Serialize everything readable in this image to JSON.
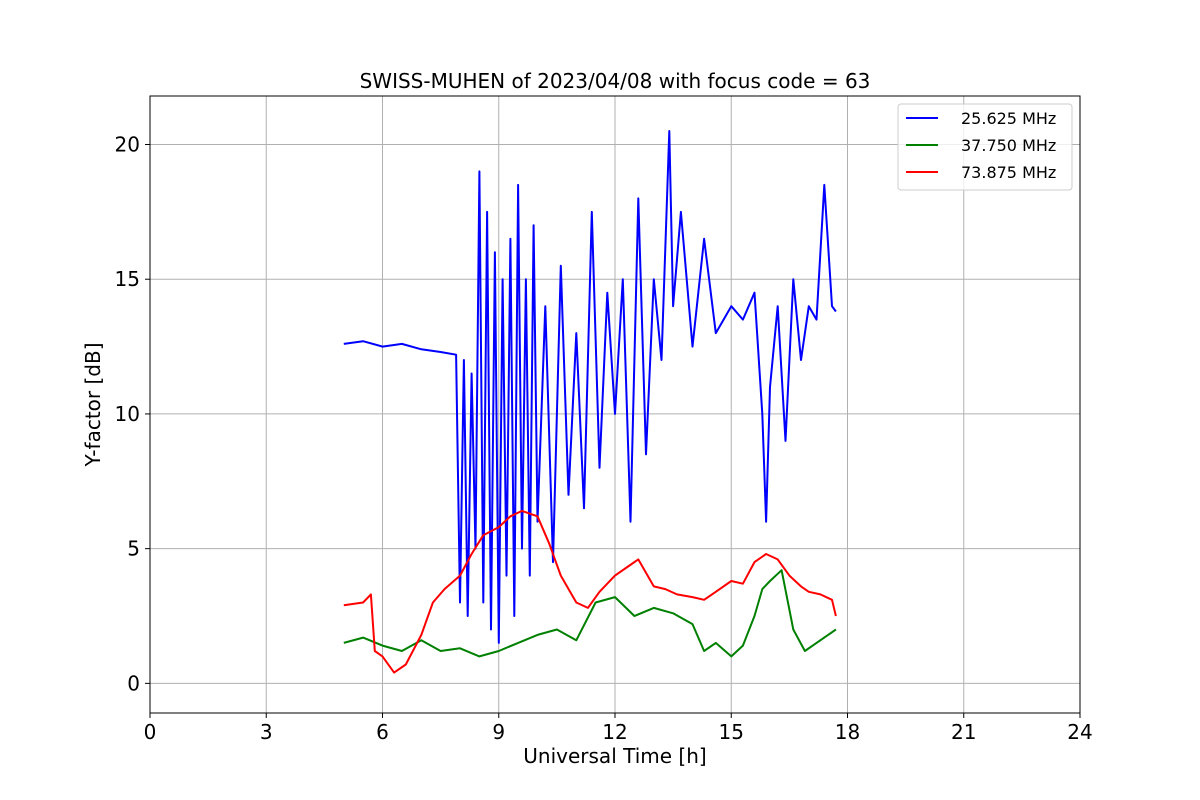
{
  "chart_data": {
    "type": "line",
    "title": "SWISS-MUHEN of 2023/04/08 with focus code = 63",
    "xlabel": "Universal Time [h]",
    "ylabel": "Y-factor [dB]",
    "xlim": [
      0,
      24
    ],
    "ylim": [
      -1.1,
      21.8
    ],
    "xticks": [
      0,
      3,
      6,
      9,
      12,
      15,
      18,
      21,
      24
    ],
    "xtick_labels": [
      "0",
      "3",
      "6",
      "9",
      "12",
      "15",
      "18",
      "21",
      "24"
    ],
    "yticks": [
      0,
      5,
      10,
      15,
      20
    ],
    "ytick_labels": [
      "0",
      "5",
      "10",
      "15",
      "20"
    ],
    "grid": true,
    "legend_position": "top-right",
    "series": [
      {
        "name": "25.625 MHz",
        "color": "#0000ff",
        "x": [
          5.0,
          5.5,
          6.0,
          6.5,
          7.0,
          7.5,
          7.9,
          8.0,
          8.1,
          8.2,
          8.3,
          8.4,
          8.5,
          8.6,
          8.7,
          8.8,
          8.9,
          9.0,
          9.1,
          9.2,
          9.3,
          9.4,
          9.5,
          9.6,
          9.7,
          9.8,
          9.9,
          10.0,
          10.2,
          10.4,
          10.6,
          10.8,
          11.0,
          11.2,
          11.4,
          11.6,
          11.8,
          12.0,
          12.2,
          12.4,
          12.6,
          12.8,
          13.0,
          13.2,
          13.4,
          13.5,
          13.7,
          14.0,
          14.3,
          14.6,
          15.0,
          15.3,
          15.6,
          15.8,
          15.9,
          16.0,
          16.2,
          16.4,
          16.6,
          16.8,
          17.0,
          17.2,
          17.4,
          17.6,
          17.7
        ],
        "values": [
          12.6,
          12.7,
          12.5,
          12.6,
          12.4,
          12.3,
          12.2,
          3.0,
          12.0,
          2.5,
          11.5,
          5.0,
          19.0,
          3.0,
          17.5,
          2.0,
          16.0,
          1.5,
          15.0,
          4.0,
          16.5,
          2.5,
          18.5,
          5.0,
          15.0,
          4.0,
          17.0,
          6.0,
          14.0,
          4.5,
          15.5,
          7.0,
          13.0,
          6.5,
          17.5,
          8.0,
          14.5,
          10.0,
          15.0,
          6.0,
          18.0,
          8.5,
          15.0,
          12.0,
          20.5,
          14.0,
          17.5,
          12.5,
          16.5,
          13.0,
          14.0,
          13.5,
          14.5,
          10.0,
          6.0,
          11.0,
          14.0,
          9.0,
          15.0,
          12.0,
          14.0,
          13.5,
          18.5,
          14.0,
          13.8
        ]
      },
      {
        "name": "37.750 MHz",
        "color": "#008000",
        "x": [
          5.0,
          5.5,
          6.0,
          6.5,
          7.0,
          7.5,
          8.0,
          8.5,
          9.0,
          9.5,
          10.0,
          10.5,
          11.0,
          11.5,
          12.0,
          12.5,
          13.0,
          13.5,
          14.0,
          14.3,
          14.6,
          15.0,
          15.3,
          15.6,
          15.8,
          16.0,
          16.3,
          16.6,
          16.9,
          17.2,
          17.5,
          17.7
        ],
        "values": [
          1.5,
          1.7,
          1.4,
          1.2,
          1.6,
          1.2,
          1.3,
          1.0,
          1.2,
          1.5,
          1.8,
          2.0,
          1.6,
          3.0,
          3.2,
          2.5,
          2.8,
          2.6,
          2.2,
          1.2,
          1.5,
          1.0,
          1.4,
          2.5,
          3.5,
          3.8,
          4.2,
          2.0,
          1.2,
          1.5,
          1.8,
          2.0
        ]
      },
      {
        "name": "73.875 MHz",
        "color": "#ff0000",
        "x": [
          5.0,
          5.5,
          5.7,
          5.8,
          6.0,
          6.3,
          6.6,
          7.0,
          7.3,
          7.6,
          8.0,
          8.3,
          8.6,
          9.0,
          9.3,
          9.6,
          10.0,
          10.3,
          10.6,
          11.0,
          11.3,
          11.6,
          12.0,
          12.3,
          12.6,
          13.0,
          13.3,
          13.6,
          14.0,
          14.3,
          14.6,
          15.0,
          15.3,
          15.6,
          15.9,
          16.2,
          16.5,
          16.8,
          17.0,
          17.3,
          17.6,
          17.7
        ],
        "values": [
          2.9,
          3.0,
          3.3,
          1.2,
          1.0,
          0.4,
          0.7,
          1.8,
          3.0,
          3.5,
          4.0,
          4.8,
          5.5,
          5.8,
          6.2,
          6.4,
          6.2,
          5.2,
          4.0,
          3.0,
          2.8,
          3.4,
          4.0,
          4.3,
          4.6,
          3.6,
          3.5,
          3.3,
          3.2,
          3.1,
          3.4,
          3.8,
          3.7,
          4.5,
          4.8,
          4.6,
          4.0,
          3.6,
          3.4,
          3.3,
          3.1,
          2.5
        ]
      }
    ]
  }
}
